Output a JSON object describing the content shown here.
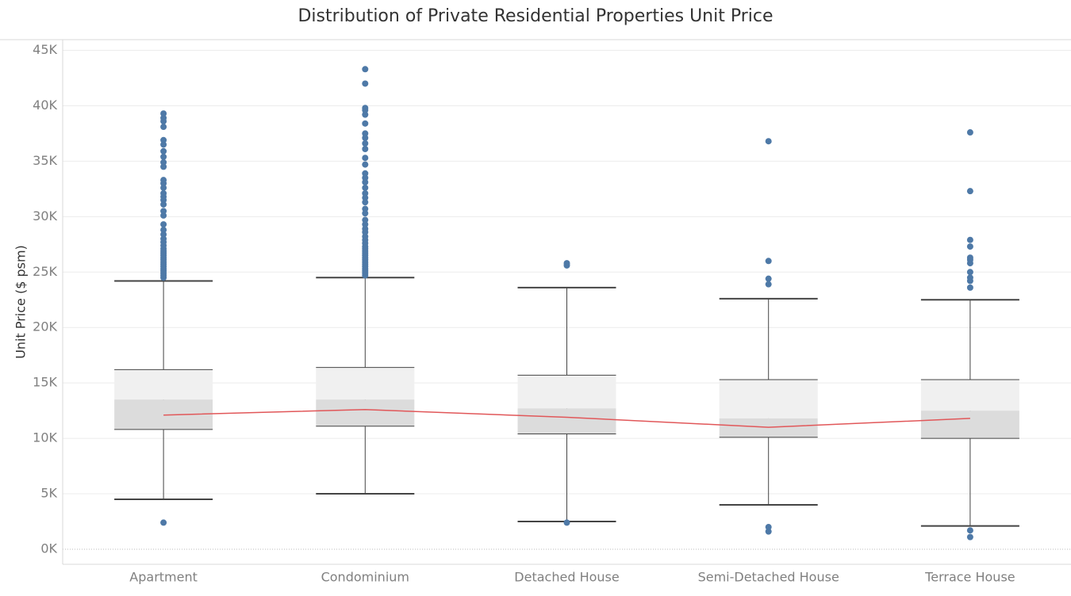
{
  "chart_data": {
    "type": "box",
    "title": "Distribution of Private Residential Properties Unit Price",
    "ylabel": "Unit Price ($ psm)",
    "xlabel": "",
    "ylim": [
      0,
      45000
    ],
    "y_ticks": [
      {
        "value": 0,
        "label": "0K"
      },
      {
        "value": 5000,
        "label": "5K"
      },
      {
        "value": 10000,
        "label": "10K"
      },
      {
        "value": 15000,
        "label": "15K"
      },
      {
        "value": 20000,
        "label": "20K"
      },
      {
        "value": 25000,
        "label": "25K"
      },
      {
        "value": 30000,
        "label": "30K"
      },
      {
        "value": 35000,
        "label": "35K"
      },
      {
        "value": 40000,
        "label": "40K"
      },
      {
        "value": 45000,
        "label": "45K"
      }
    ],
    "grid": true,
    "categories": [
      "Apartment",
      "Condominium",
      "Detached House",
      "Semi-Detached House",
      "Terrace House"
    ],
    "boxes": [
      {
        "category": "Apartment",
        "whisker_low": 4500,
        "q1": 10800,
        "median": 13500,
        "q3": 16200,
        "whisker_high": 24200,
        "outliers": [
          2400,
          24500,
          24700,
          24900,
          25100,
          25300,
          25500,
          25700,
          25900,
          26100,
          26300,
          26500,
          26700,
          26900,
          27100,
          27400,
          27700,
          28000,
          28400,
          28800,
          29300,
          30100,
          30500,
          31100,
          31500,
          31800,
          32100,
          32600,
          33000,
          33300,
          34500,
          34900,
          35400,
          35900,
          36500,
          36900,
          38100,
          38600,
          38900,
          39300
        ]
      },
      {
        "category": "Condominium",
        "whisker_low": 5000,
        "q1": 11100,
        "median": 13500,
        "q3": 16400,
        "whisker_high": 24500,
        "outliers": [
          24700,
          24900,
          25100,
          25300,
          25500,
          25700,
          25900,
          26100,
          26300,
          26500,
          26700,
          26900,
          27100,
          27300,
          27600,
          27900,
          28200,
          28600,
          28900,
          29300,
          29700,
          30300,
          30700,
          31300,
          31700,
          32100,
          32600,
          33100,
          33500,
          33900,
          34700,
          35300,
          36100,
          36600,
          37100,
          37500,
          38400,
          39200,
          39600,
          39800,
          42000,
          43300
        ]
      },
      {
        "category": "Detached House",
        "whisker_low": 2500,
        "q1": 10400,
        "median": 12700,
        "q3": 15700,
        "whisker_high": 23600,
        "outliers": [
          2400,
          25600,
          25800
        ]
      },
      {
        "category": "Semi-Detached House",
        "whisker_low": 4000,
        "q1": 10100,
        "median": 11800,
        "q3": 15300,
        "whisker_high": 22600,
        "outliers": [
          1600,
          2000,
          23900,
          24400,
          26000,
          36800
        ]
      },
      {
        "category": "Terrace House",
        "whisker_low": 2100,
        "q1": 10000,
        "median": 12500,
        "q3": 15300,
        "whisker_high": 22500,
        "outliers": [
          1100,
          1700,
          23600,
          24200,
          24500,
          25000,
          25800,
          26100,
          26300,
          27300,
          27900,
          32300,
          37600
        ]
      }
    ],
    "average_line": {
      "values": [
        12100,
        12600,
        11900,
        11000,
        11800
      ]
    },
    "colors": {
      "outlier": "#4e79a7",
      "average_line": "#e15759",
      "box_upper": "#f0f0f0",
      "box_lower": "#dcdcdc",
      "whisker": "#444444",
      "gridline": "#ececec",
      "axis": "#d9d9d9"
    }
  }
}
